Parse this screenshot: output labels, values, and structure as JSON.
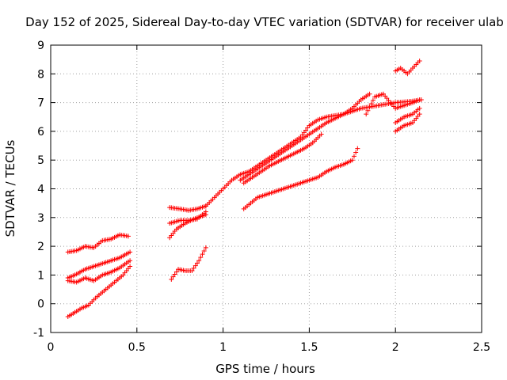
{
  "chart_data": {
    "type": "scatter",
    "title": "Day 152 of 2025, Sidereal Day-to-day VTEC variation (SDTVAR) for receiver ulab",
    "xlabel": "GPS time / hours",
    "ylabel": "SDTVAR / TECUs",
    "xlim": [
      0,
      2.5
    ],
    "ylim": [
      -1,
      9
    ],
    "xticks": [
      0,
      0.5,
      1,
      1.5,
      2,
      2.5
    ],
    "xtick_labels": [
      "0",
      "0.5",
      "1",
      "1.5",
      "2",
      "2.5"
    ],
    "yticks": [
      -1,
      0,
      1,
      2,
      3,
      4,
      5,
      6,
      7,
      8,
      9
    ],
    "ytick_labels": [
      "-1",
      "0",
      "1",
      "2",
      "3",
      "4",
      "5",
      "6",
      "7",
      "8",
      "9"
    ],
    "grid": true,
    "marker": "+",
    "marker_color": "#ff0000",
    "series": [
      {
        "x": [
          0.1,
          0.15,
          0.2,
          0.25,
          0.3,
          0.35,
          0.4,
          0.45
        ],
        "y": [
          1.8,
          1.85,
          2.0,
          1.95,
          2.2,
          2.25,
          2.4,
          2.35
        ]
      },
      {
        "x": [
          0.1,
          0.14,
          0.2,
          0.25,
          0.3,
          0.35,
          0.4,
          0.46
        ],
        "y": [
          0.9,
          1.0,
          1.2,
          1.3,
          1.4,
          1.5,
          1.6,
          1.8
        ]
      },
      {
        "x": [
          0.1,
          0.15,
          0.2,
          0.25,
          0.3,
          0.35,
          0.4,
          0.46
        ],
        "y": [
          0.8,
          0.75,
          0.9,
          0.8,
          1.0,
          1.1,
          1.25,
          1.5
        ]
      },
      {
        "x": [
          0.1,
          0.14,
          0.18,
          0.22,
          0.26,
          0.3,
          0.34,
          0.38,
          0.42,
          0.46
        ],
        "y": [
          -0.45,
          -0.3,
          -0.15,
          -0.05,
          0.2,
          0.4,
          0.6,
          0.8,
          1.0,
          1.3
        ]
      },
      {
        "x": [
          0.69,
          0.75,
          0.8,
          0.85,
          0.9
        ],
        "y": [
          3.35,
          3.3,
          3.25,
          3.3,
          3.4
        ]
      },
      {
        "x": [
          0.69,
          0.75,
          0.8,
          0.85,
          0.9
        ],
        "y": [
          2.8,
          2.9,
          2.9,
          2.95,
          3.2
        ]
      },
      {
        "x": [
          0.69,
          0.73,
          0.78,
          0.83,
          0.9
        ],
        "y": [
          2.3,
          2.6,
          2.8,
          2.95,
          3.1
        ]
      },
      {
        "x": [
          0.7,
          0.74,
          0.78,
          0.82,
          0.86,
          0.9
        ],
        "y": [
          0.85,
          1.2,
          1.15,
          1.15,
          1.5,
          1.95
        ]
      },
      {
        "x": [
          0.9,
          0.95,
          1.0,
          1.05,
          1.1,
          1.15,
          1.2,
          1.25,
          1.3,
          1.35,
          1.4,
          1.45,
          1.5,
          1.55,
          1.6,
          1.7,
          1.8,
          1.9,
          2.0,
          2.1,
          2.15
        ],
        "y": [
          3.4,
          3.7,
          4.0,
          4.3,
          4.5,
          4.6,
          4.8,
          5.0,
          5.2,
          5.4,
          5.6,
          5.8,
          6.2,
          6.4,
          6.5,
          6.6,
          6.8,
          6.9,
          7.0,
          7.05,
          7.1
        ]
      },
      {
        "x": [
          1.1,
          1.15,
          1.2,
          1.25,
          1.3,
          1.35,
          1.4,
          1.45,
          1.5,
          1.55,
          1.6,
          1.7,
          1.75,
          1.8,
          1.85
        ],
        "y": [
          4.3,
          4.5,
          4.7,
          4.9,
          5.1,
          5.3,
          5.5,
          5.7,
          5.9,
          6.1,
          6.3,
          6.6,
          6.8,
          7.1,
          7.3
        ]
      },
      {
        "x": [
          1.12,
          1.17,
          1.22,
          1.27,
          1.32,
          1.37,
          1.42,
          1.47,
          1.52,
          1.57
        ],
        "y": [
          4.2,
          4.4,
          4.6,
          4.8,
          4.95,
          5.1,
          5.25,
          5.4,
          5.6,
          5.9
        ]
      },
      {
        "x": [
          1.12,
          1.16,
          1.2,
          1.25,
          1.3,
          1.35,
          1.4,
          1.45,
          1.5,
          1.55,
          1.6,
          1.65,
          1.7,
          1.75,
          1.78
        ],
        "y": [
          3.3,
          3.5,
          3.7,
          3.8,
          3.9,
          4.0,
          4.1,
          4.2,
          4.3,
          4.4,
          4.6,
          4.75,
          4.85,
          5.0,
          5.4
        ]
      },
      {
        "x": [
          1.83,
          1.88,
          1.93,
          1.97,
          2.0,
          2.05,
          2.1,
          2.14
        ],
        "y": [
          6.6,
          7.2,
          7.3,
          7.0,
          6.8,
          6.9,
          7.0,
          7.1
        ]
      },
      {
        "x": [
          2.0,
          2.05,
          2.1,
          2.14
        ],
        "y": [
          6.0,
          6.2,
          6.3,
          6.6
        ]
      },
      {
        "x": [
          2.0,
          2.05,
          2.1,
          2.14
        ],
        "y": [
          6.3,
          6.5,
          6.6,
          6.8
        ]
      },
      {
        "x": [
          2.0,
          2.03,
          2.07,
          2.1,
          2.14
        ],
        "y": [
          8.1,
          8.2,
          8.0,
          8.2,
          8.45
        ]
      }
    ]
  }
}
